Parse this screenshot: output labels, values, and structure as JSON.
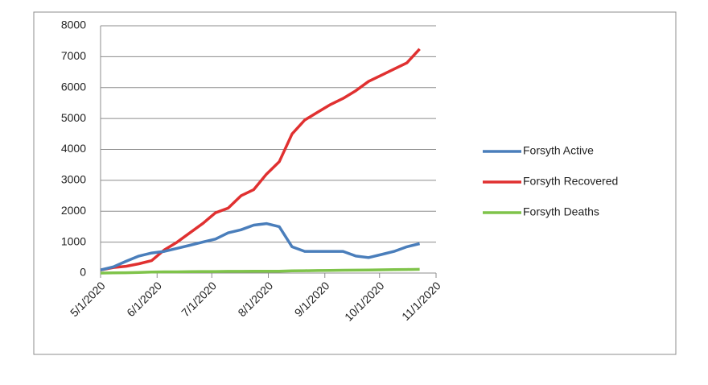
{
  "chart_data": {
    "type": "line",
    "x": [
      "5/1/2020",
      "5/8/2020",
      "5/15/2020",
      "5/22/2020",
      "5/29/2020",
      "6/5/2020",
      "6/12/2020",
      "6/19/2020",
      "6/26/2020",
      "7/3/2020",
      "7/10/2020",
      "7/17/2020",
      "7/24/2020",
      "7/31/2020",
      "8/7/2020",
      "8/14/2020",
      "8/21/2020",
      "8/28/2020",
      "9/4/2020",
      "9/11/2020",
      "9/18/2020",
      "9/25/2020",
      "10/2/2020",
      "10/9/2020",
      "10/16/2020",
      "10/23/2020"
    ],
    "series": [
      {
        "name": "Forsyth Active",
        "color": "#4a7ebb",
        "values": [
          100,
          200,
          380,
          550,
          650,
          700,
          800,
          900,
          1000,
          1100,
          1300,
          1400,
          1550,
          1600,
          1500,
          850,
          700,
          700,
          700,
          700,
          550,
          500,
          600,
          700,
          850,
          950
        ]
      },
      {
        "name": "Forsyth Recovered",
        "color": "#e03030",
        "values": [
          100,
          180,
          220,
          300,
          400,
          750,
          1000,
          1300,
          1600,
          1950,
          2100,
          2500,
          2700,
          3200,
          3600,
          4500,
          4950,
          5200,
          5450,
          5650,
          5900,
          6200,
          6400,
          6600,
          6800,
          7250
        ]
      },
      {
        "name": "Forsyth Deaths",
        "color": "#7fc34a",
        "values": [
          0,
          5,
          10,
          20,
          30,
          40,
          40,
          45,
          50,
          50,
          55,
          55,
          60,
          60,
          60,
          70,
          75,
          80,
          85,
          90,
          95,
          100,
          105,
          110,
          115,
          120
        ]
      }
    ],
    "xlim": [
      "5/1/2020",
      "11/1/2020"
    ],
    "xticks": [
      "5/1/2020",
      "6/1/2020",
      "7/1/2020",
      "8/1/2020",
      "9/1/2020",
      "10/1/2020",
      "11/1/2020"
    ],
    "ylim": [
      0,
      8000
    ],
    "yticks": [
      0,
      1000,
      2000,
      3000,
      4000,
      5000,
      6000,
      7000,
      8000
    ],
    "grid": true,
    "legend": "right"
  }
}
